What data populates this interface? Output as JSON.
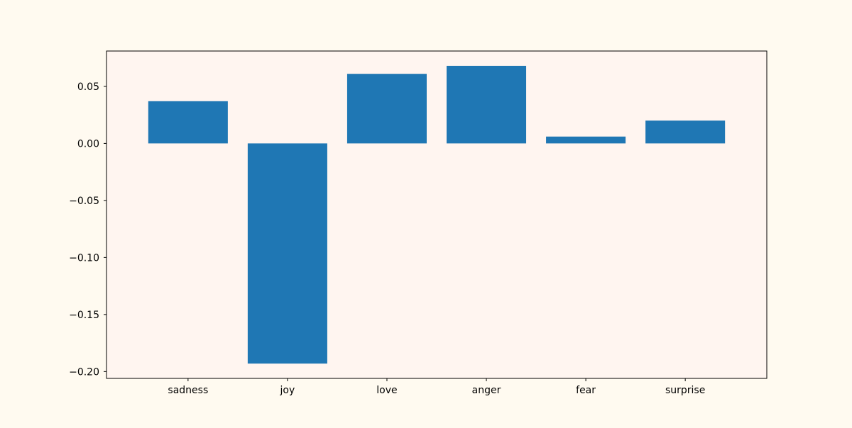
{
  "colors": {
    "figure_background": "#fffaf0",
    "plot_background": "#fff5f0",
    "bar": "#1f77b4",
    "axis": "#000000"
  },
  "chart_data": {
    "type": "bar",
    "title": "",
    "xlabel": "",
    "ylabel": "",
    "categories": [
      "sadness",
      "joy",
      "love",
      "anger",
      "fear",
      "surprise"
    ],
    "values": [
      0.037,
      -0.193,
      0.061,
      0.068,
      0.006,
      0.02
    ],
    "ylim": [
      -0.206,
      0.081
    ],
    "yticks": [
      0.05,
      0.0,
      -0.05,
      -0.1,
      -0.15,
      -0.2
    ],
    "ytick_labels": [
      "0.05",
      "0.00",
      "−0.05",
      "−0.10",
      "−0.15",
      "−0.20"
    ],
    "grid": false,
    "legend": "none"
  }
}
